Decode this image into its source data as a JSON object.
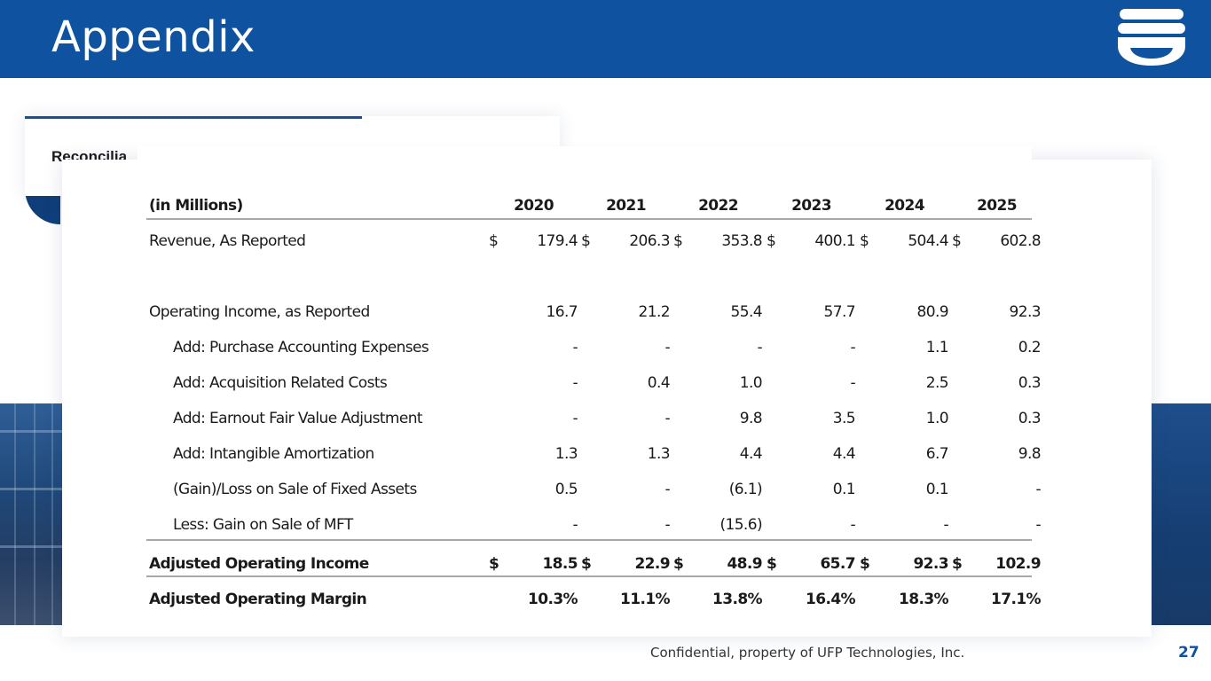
{
  "header": {
    "title": "Appendix"
  },
  "subtitle": "Reconcilia",
  "table": {
    "unit_label": "(in Millions)",
    "years": [
      "2020",
      "2021",
      "2022",
      "2023",
      "2024",
      "2025"
    ],
    "rows": [
      {
        "label": "Revenue, As Reported",
        "indent": false,
        "bold": false,
        "dollar": true,
        "values": [
          "179.4",
          "206.3",
          "353.8",
          "400.1",
          "504.4",
          "602.8"
        ]
      },
      {
        "label": "Operating Income, as Reported",
        "indent": false,
        "bold": false,
        "dollar": false,
        "values": [
          "16.7",
          "21.2",
          "55.4",
          "57.7",
          "80.9",
          "92.3"
        ]
      },
      {
        "label": "Add: Purchase Accounting Expenses",
        "indent": true,
        "bold": false,
        "dollar": false,
        "values": [
          "-",
          "-",
          "-",
          "-",
          "1.1",
          "0.2"
        ]
      },
      {
        "label": "Add: Acquisition Related Costs",
        "indent": true,
        "bold": false,
        "dollar": false,
        "values": [
          "-",
          "0.4",
          "1.0",
          "-",
          "2.5",
          "0.3"
        ]
      },
      {
        "label": "Add: Earnout Fair Value Adjustment",
        "indent": true,
        "bold": false,
        "dollar": false,
        "values": [
          "-",
          "-",
          "9.8",
          "3.5",
          "1.0",
          "0.3"
        ]
      },
      {
        "label": "Add: Intangible Amortization",
        "indent": true,
        "bold": false,
        "dollar": false,
        "values": [
          "1.3",
          "1.3",
          "4.4",
          "4.4",
          "6.7",
          "9.8"
        ]
      },
      {
        "label": "(Gain)/Loss on Sale of Fixed Assets",
        "indent": true,
        "bold": false,
        "dollar": false,
        "values": [
          "0.5",
          "-",
          "(6.1)",
          "0.1",
          "0.1",
          "-"
        ]
      },
      {
        "label": "Less: Gain on Sale of MFT",
        "indent": true,
        "bold": false,
        "dollar": false,
        "values": [
          "-",
          "-",
          "(15.6)",
          "-",
          "-",
          "-"
        ]
      },
      {
        "label": "Adjusted Operating Income",
        "indent": false,
        "bold": true,
        "dollar": true,
        "values": [
          "18.5",
          "22.9",
          "48.9",
          "65.7",
          "92.3",
          "102.9"
        ]
      },
      {
        "label": "Adjusted Operating Margin",
        "indent": false,
        "bold": true,
        "dollar": false,
        "values": [
          "10.3%",
          "11.1%",
          "13.8%",
          "16.4%",
          "18.3%",
          "17.1%"
        ]
      }
    ],
    "currency_symbol": "$"
  },
  "footer": {
    "note": "Confidential, property of UFP Technologies, Inc.",
    "page_number": "27"
  },
  "colors": {
    "brand_blue": "#0f52a0",
    "rule_gray": "#a8a8a8"
  },
  "icons": {
    "logo": "ufp-logo-icon"
  }
}
